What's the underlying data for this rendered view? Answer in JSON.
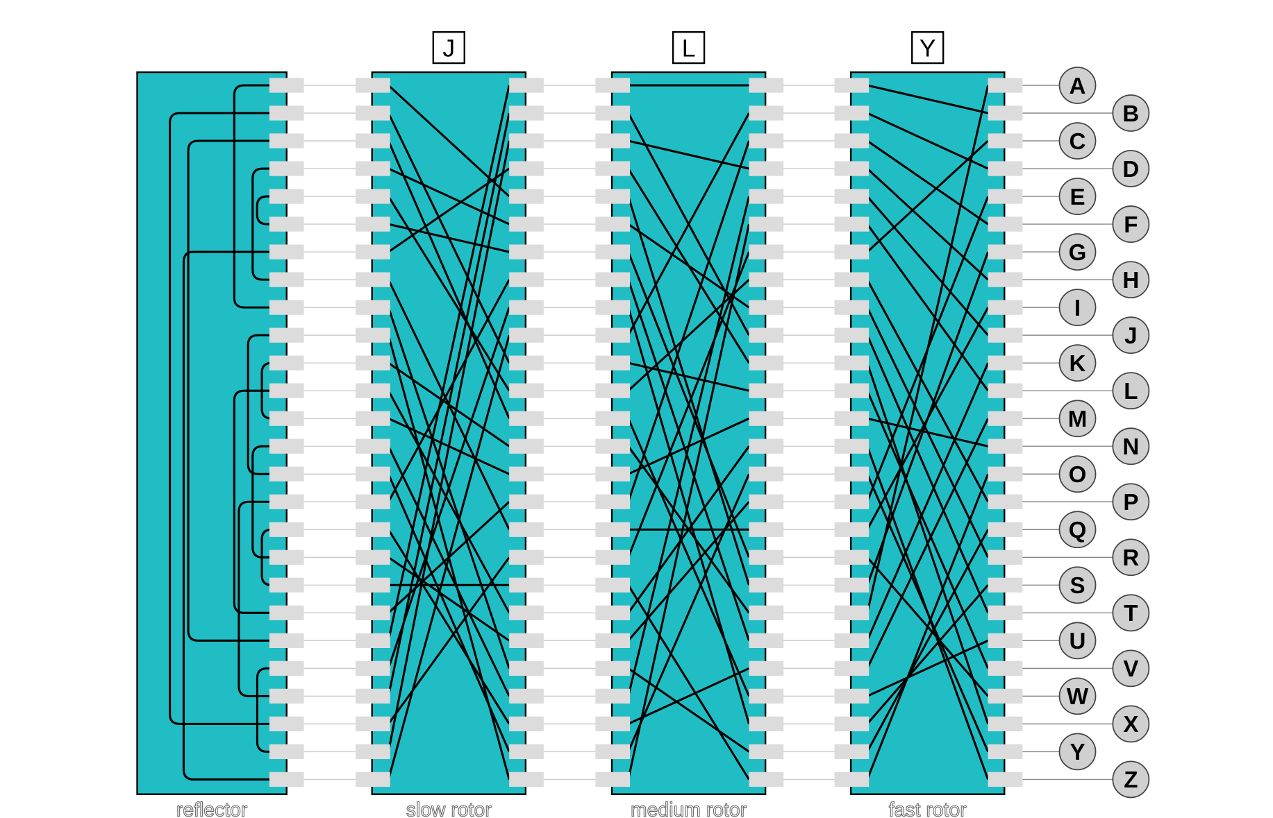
{
  "reflector": {
    "label": "reflector",
    "pairs": [
      [
        0,
        8
      ],
      [
        1,
        23
      ],
      [
        2,
        20
      ],
      [
        3,
        7
      ],
      [
        4,
        5
      ],
      [
        6,
        25
      ],
      [
        9,
        14
      ],
      [
        10,
        12
      ],
      [
        11,
        19
      ],
      [
        13,
        17
      ],
      [
        15,
        22
      ],
      [
        16,
        18
      ],
      [
        21,
        24
      ]
    ]
  },
  "rotors": [
    {
      "label": "slow rotor",
      "window": "J",
      "wiring": [
        4,
        10,
        12,
        5,
        11,
        6,
        3,
        16,
        21,
        25,
        13,
        19,
        14,
        22,
        24,
        7,
        23,
        20,
        18,
        15,
        0,
        8,
        1,
        17,
        2,
        9
      ]
    },
    {
      "label": "medium rotor",
      "window": "L",
      "wiring": [
        0,
        9,
        3,
        10,
        18,
        8,
        17,
        20,
        23,
        1,
        11,
        7,
        22,
        19,
        12,
        2,
        16,
        6,
        25,
        13,
        15,
        24,
        4,
        21,
        14,
        5
      ]
    },
    {
      "label": "fast rotor",
      "window": "Y",
      "wiring": [
        1,
        3,
        5,
        7,
        9,
        11,
        2,
        15,
        17,
        19,
        23,
        21,
        13,
        25,
        24,
        4,
        8,
        22,
        6,
        0,
        10,
        12,
        20,
        18,
        16,
        14
      ]
    }
  ],
  "letters": [
    "A",
    "B",
    "C",
    "D",
    "E",
    "F",
    "G",
    "H",
    "I",
    "J",
    "K",
    "L",
    "M",
    "N",
    "O",
    "P",
    "Q",
    "R",
    "S",
    "T",
    "U",
    "V",
    "W",
    "X",
    "Y",
    "Z"
  ]
}
